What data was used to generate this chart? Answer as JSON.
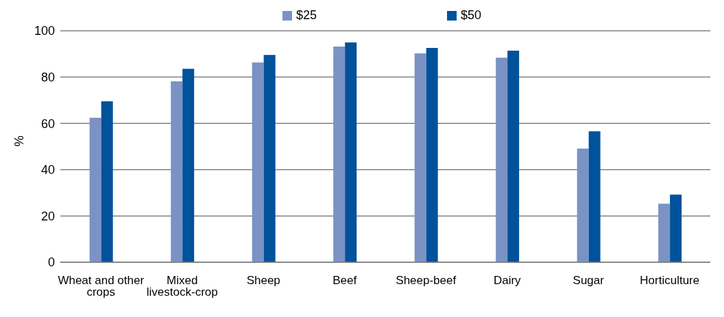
{
  "chart_data": {
    "type": "bar",
    "ylabel": "%",
    "categories": [
      "Wheat and other crops",
      "Mixed livestock-crop",
      "Sheep",
      "Beef",
      "Sheep-beef",
      "Dairy",
      "Sugar",
      "Horticulture"
    ],
    "series": [
      {
        "name": "$25",
        "color": "#7a93c4",
        "values": [
          62.4,
          78.2,
          86.3,
          93.2,
          90.2,
          88.4,
          49.1,
          25.3
        ]
      },
      {
        "name": "$50",
        "color": "#00529b",
        "values": [
          69.5,
          83.6,
          89.6,
          95.0,
          92.6,
          91.4,
          56.6,
          29.2
        ]
      }
    ],
    "ylim": [
      0,
      100
    ],
    "yticks": [
      0,
      20,
      40,
      60,
      80,
      100
    ],
    "grid": "y",
    "legend": "top"
  }
}
